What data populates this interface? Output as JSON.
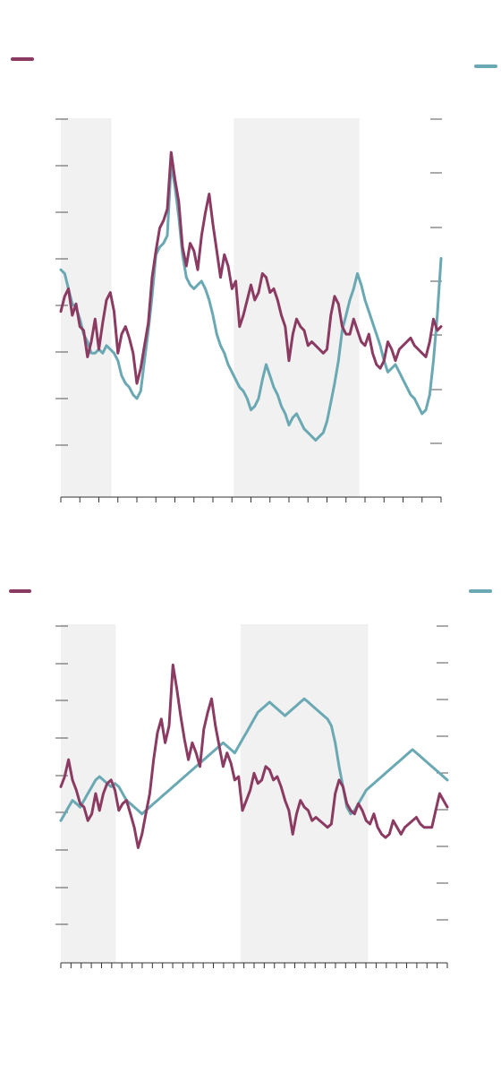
{
  "chart_data": [
    {
      "type": "line",
      "title": "",
      "xlabel": "",
      "ylabel": "",
      "grid": false,
      "x_ticks": 20,
      "legend": [
        "top-left",
        "top-right"
      ],
      "colors": {
        "series_a": "#8b3a62",
        "series_b": "#6aa9b3",
        "shade": "#f1f1f1"
      },
      "ylim": [
        0,
        100
      ],
      "shaded_ranges": [
        [
          0,
          13.3
        ],
        [
          45.5,
          78.5
        ]
      ],
      "series": [
        {
          "axis": "left",
          "x": [
            0,
            1,
            2,
            3,
            4,
            5,
            6,
            7,
            8,
            9,
            10,
            11,
            12,
            13,
            14,
            15,
            16,
            17,
            18,
            19,
            20,
            21,
            22,
            23,
            24,
            25,
            26,
            27,
            28,
            29,
            30,
            31,
            32,
            33,
            34,
            35,
            36,
            37,
            38,
            39,
            40,
            41,
            42,
            43,
            44,
            45,
            46,
            47,
            48,
            49,
            50,
            51,
            52,
            53,
            54,
            55,
            56,
            57,
            58,
            59,
            60,
            61,
            62,
            63,
            64,
            65,
            66,
            67,
            68,
            69,
            70,
            71,
            72,
            73,
            74,
            75,
            76,
            77,
            78,
            79,
            80,
            81,
            82,
            83,
            84,
            85,
            86,
            87,
            88,
            89,
            90,
            91,
            92,
            93,
            94,
            95,
            96,
            97,
            98,
            99,
            100
          ],
          "values": [
            49,
            53,
            55,
            48,
            51,
            45,
            44,
            37,
            41,
            47,
            39,
            46,
            52,
            54,
            49,
            38,
            43,
            45,
            42,
            38,
            30,
            34,
            40,
            46,
            58,
            65,
            71,
            73,
            76,
            91,
            84,
            78,
            66,
            61,
            67,
            65,
            60,
            69,
            75,
            80,
            72,
            65,
            58,
            64,
            61,
            55,
            57,
            45,
            48,
            52,
            56,
            52,
            54,
            59,
            58,
            54,
            55,
            52,
            48,
            45,
            36,
            43,
            47,
            45,
            44,
            40,
            41,
            40,
            39,
            38,
            39,
            48,
            53,
            51,
            45,
            43,
            43,
            47,
            44,
            41,
            40,
            43,
            38,
            35,
            34,
            36,
            41,
            39,
            36,
            39,
            40,
            41,
            42,
            40,
            39,
            38,
            37,
            41,
            47,
            44,
            45
          ]
        },
        {
          "axis": "right",
          "x": [
            0,
            1,
            2,
            3,
            4,
            5,
            6,
            7,
            8,
            9,
            10,
            11,
            12,
            13,
            14,
            15,
            16,
            17,
            18,
            19,
            20,
            21,
            22,
            23,
            24,
            25,
            26,
            27,
            28,
            29,
            30,
            31,
            32,
            33,
            34,
            35,
            36,
            37,
            38,
            39,
            40,
            41,
            42,
            43,
            44,
            45,
            46,
            47,
            48,
            49,
            50,
            51,
            52,
            53,
            54,
            55,
            56,
            57,
            58,
            59,
            60,
            61,
            62,
            63,
            64,
            65,
            66,
            67,
            68,
            69,
            70,
            71,
            72,
            73,
            74,
            75,
            76,
            77,
            78,
            79,
            80,
            81,
            82,
            83,
            84,
            85,
            86,
            87,
            88,
            89,
            90,
            91,
            92,
            93,
            94,
            95,
            96,
            97,
            98,
            99,
            100
          ],
          "values": [
            60,
            59,
            55,
            51,
            50,
            47,
            43,
            41,
            38,
            38,
            39,
            38,
            40,
            39,
            38,
            36,
            32,
            30,
            29,
            27,
            26,
            28,
            36,
            44,
            53,
            64,
            66,
            67,
            69,
            88,
            82,
            74,
            64,
            58,
            56,
            55,
            56,
            57,
            55,
            52,
            48,
            43,
            40,
            38,
            35,
            33,
            31,
            29,
            28,
            26,
            23,
            24,
            26,
            31,
            35,
            32,
            29,
            27,
            24,
            22,
            19,
            21,
            22,
            20,
            18,
            17,
            16,
            15,
            16,
            17,
            20,
            25,
            30,
            36,
            44,
            48,
            52,
            55,
            59,
            56,
            52,
            49,
            46,
            43,
            40,
            36,
            33,
            34,
            35,
            33,
            31,
            29,
            27,
            26,
            24,
            22,
            23,
            27,
            36,
            48,
            63
          ]
        }
      ]
    },
    {
      "type": "line",
      "title": "",
      "xlabel": "",
      "ylabel": "",
      "grid": false,
      "x_ticks": 38,
      "legend": [
        "top-left",
        "top-right"
      ],
      "colors": {
        "series_a": "#8b3a62",
        "series_b": "#6aa9b3",
        "shade": "#f1f1f1"
      },
      "ylim": [
        0,
        100
      ],
      "shaded_ranges": [
        [
          0,
          14.2
        ],
        [
          46.5,
          79.5
        ]
      ],
      "series": [
        {
          "axis": "left",
          "x": [
            0,
            1,
            2,
            3,
            4,
            5,
            6,
            7,
            8,
            9,
            10,
            11,
            12,
            13,
            14,
            15,
            16,
            17,
            18,
            19,
            20,
            21,
            22,
            23,
            24,
            25,
            26,
            27,
            28,
            29,
            30,
            31,
            32,
            33,
            34,
            35,
            36,
            37,
            38,
            39,
            40,
            41,
            42,
            43,
            44,
            45,
            46,
            47,
            48,
            49,
            50,
            51,
            52,
            53,
            54,
            55,
            56,
            57,
            58,
            59,
            60,
            61,
            62,
            63,
            64,
            65,
            66,
            67,
            68,
            69,
            70,
            71,
            72,
            73,
            74,
            75,
            76,
            77,
            78,
            79,
            80,
            81,
            82,
            83,
            84,
            85,
            86,
            87,
            88,
            89,
            90,
            91,
            92,
            93,
            94,
            95,
            96,
            97,
            98,
            99,
            100
          ],
          "values": [
            52,
            55,
            60,
            54,
            51,
            47,
            46,
            42,
            44,
            50,
            45,
            50,
            53,
            54,
            51,
            45,
            47,
            48,
            44,
            40,
            34,
            38,
            44,
            50,
            60,
            68,
            72,
            65,
            70,
            88,
            81,
            73,
            66,
            60,
            65,
            62,
            58,
            69,
            74,
            78,
            70,
            64,
            58,
            62,
            59,
            54,
            55,
            45,
            48,
            51,
            56,
            53,
            54,
            58,
            57,
            54,
            55,
            52,
            48,
            45,
            38,
            44,
            48,
            46,
            45,
            42,
            43,
            42,
            41,
            40,
            41,
            50,
            54,
            52,
            47,
            45,
            44,
            47,
            45,
            42,
            41,
            44,
            40,
            38,
            37,
            38,
            42,
            40,
            38,
            40,
            41,
            42,
            43,
            41,
            40,
            40,
            40,
            45,
            50,
            48,
            46
          ]
        },
        {
          "axis": "right",
          "x": [
            0,
            1,
            2,
            3,
            4,
            5,
            6,
            7,
            8,
            9,
            10,
            11,
            12,
            13,
            14,
            15,
            16,
            17,
            18,
            19,
            20,
            21,
            22,
            23,
            24,
            25,
            26,
            27,
            28,
            29,
            30,
            31,
            32,
            33,
            34,
            35,
            36,
            37,
            38,
            39,
            40,
            41,
            42,
            43,
            44,
            45,
            46,
            47,
            48,
            49,
            50,
            51,
            52,
            53,
            54,
            55,
            56,
            57,
            58,
            59,
            60,
            61,
            62,
            63,
            64,
            65,
            66,
            67,
            68,
            69,
            70,
            71,
            72,
            73,
            74,
            75,
            76,
            77,
            78,
            79,
            80,
            81,
            82,
            83,
            84,
            85,
            86,
            87,
            88,
            89,
            90,
            91,
            92,
            93,
            94,
            95,
            96,
            97,
            98,
            99,
            100
          ],
          "values": [
            42,
            44,
            46,
            48,
            47,
            46,
            48,
            50,
            52,
            54,
            55,
            54,
            53,
            52,
            53,
            52,
            50,
            48,
            47,
            46,
            45,
            44,
            45,
            46,
            47,
            48,
            49,
            50,
            51,
            52,
            53,
            54,
            55,
            56,
            57,
            58,
            59,
            60,
            61,
            62,
            63,
            64,
            65,
            64,
            63,
            62,
            64,
            66,
            68,
            70,
            72,
            74,
            75,
            76,
            77,
            76,
            75,
            74,
            73,
            74,
            75,
            76,
            77,
            78,
            77,
            76,
            75,
            74,
            73,
            72,
            70,
            65,
            58,
            52,
            46,
            44,
            45,
            47,
            49,
            51,
            52,
            53,
            54,
            55,
            56,
            57,
            58,
            59,
            60,
            61,
            62,
            63,
            62,
            61,
            60,
            59,
            58,
            57,
            56,
            55,
            54
          ]
        }
      ]
    }
  ]
}
